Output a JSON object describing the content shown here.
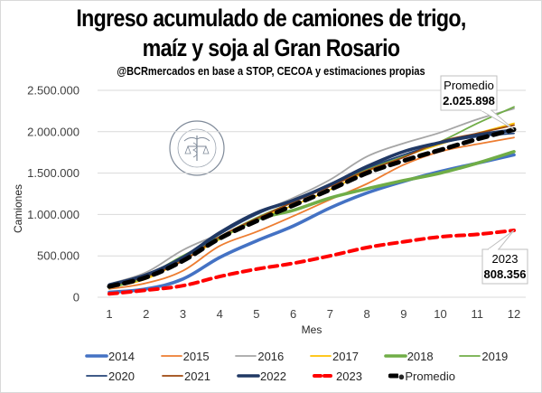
{
  "chart_data": {
    "type": "line",
    "title": "Ingreso acumulado de camiones de trigo, maíz y soja al Gran Rosario",
    "title_lines": [
      "Ingreso acumulado de camiones de trigo,",
      "maíz y soja al Gran Rosario"
    ],
    "subtitle": "@BCRmercados  en base a STOP, CECOA y estimaciones propias",
    "xlabel": "Mes",
    "ylabel": "Camiones",
    "x": [
      1,
      2,
      3,
      4,
      5,
      6,
      7,
      8,
      9,
      10,
      11,
      12
    ],
    "x_tick_labels": [
      "1",
      "2",
      "3",
      "4",
      "5",
      "6",
      "7",
      "8",
      "9",
      "10",
      "11",
      "12"
    ],
    "ylim": [
      0,
      2500000
    ],
    "y_ticks": [
      0,
      500000,
      1000000,
      1500000,
      2000000,
      2500000
    ],
    "y_tick_labels": [
      "0",
      "500.000",
      "1.000.000",
      "1.500.000",
      "2.000.000",
      "2.500.000"
    ],
    "grid": "horizontal",
    "legend_position": "bottom",
    "watermark": "BOLSA DE COMERCIO DE ROSARIO",
    "series": [
      {
        "name": "2014",
        "color": "#4472c4",
        "style": "solid-thick",
        "values": [
          60000,
          100000,
          220000,
          480000,
          680000,
          860000,
          1080000,
          1260000,
          1400000,
          1520000,
          1620000,
          1720000
        ]
      },
      {
        "name": "2015",
        "color": "#ed7d31",
        "style": "solid",
        "values": [
          100000,
          170000,
          320000,
          620000,
          790000,
          980000,
          1180000,
          1370000,
          1600000,
          1760000,
          1850000,
          1930000
        ]
      },
      {
        "name": "2016",
        "color": "#a5a5a5",
        "style": "solid",
        "values": [
          160000,
          300000,
          570000,
          770000,
          1010000,
          1200000,
          1420000,
          1700000,
          1860000,
          1990000,
          2150000,
          2280000
        ]
      },
      {
        "name": "2017",
        "color": "#ffc000",
        "style": "solid",
        "values": [
          120000,
          220000,
          450000,
          700000,
          940000,
          1110000,
          1300000,
          1520000,
          1700000,
          1850000,
          1980000,
          2100000
        ]
      },
      {
        "name": "2018",
        "color": "#70ad47",
        "style": "solid-thick",
        "values": [
          120000,
          250000,
          490000,
          720000,
          940000,
          1050000,
          1200000,
          1310000,
          1410000,
          1500000,
          1620000,
          1760000
        ]
      },
      {
        "name": "2019",
        "color": "#70ad47",
        "style": "solid",
        "values": [
          130000,
          260000,
          500000,
          730000,
          960000,
          1150000,
          1350000,
          1550000,
          1700000,
          1880000,
          2100000,
          2300000
        ]
      },
      {
        "name": "2020",
        "color": "#264478",
        "style": "solid",
        "values": [
          150000,
          280000,
          470000,
          760000,
          1000000,
          1180000,
          1360000,
          1560000,
          1720000,
          1860000,
          1940000,
          1980000
        ]
      },
      {
        "name": "2021",
        "color": "#9e480e",
        "style": "solid",
        "values": [
          140000,
          250000,
          440000,
          730000,
          950000,
          1150000,
          1340000,
          1530000,
          1690000,
          1880000,
          1980000,
          2080000
        ]
      },
      {
        "name": "2022",
        "color": "#203864",
        "style": "solid-thick",
        "values": [
          150000,
          270000,
          480000,
          780000,
          1020000,
          1170000,
          1360000,
          1580000,
          1760000,
          1870000,
          1960000,
          2020000
        ]
      },
      {
        "name": "2023",
        "color": "#ff0000",
        "style": "dashed",
        "values": [
          40000,
          85000,
          140000,
          250000,
          340000,
          410000,
          500000,
          600000,
          670000,
          730000,
          760000,
          808356
        ]
      },
      {
        "name": "Promedio",
        "color": "#000000",
        "style": "dashed-thick",
        "values": [
          130000,
          240000,
          440000,
          710000,
          920000,
          1110000,
          1300000,
          1500000,
          1650000,
          1780000,
          1910000,
          2025898
        ]
      }
    ],
    "annotations": [
      {
        "series": "Promedio",
        "x": 12,
        "label_name": "Promedio",
        "label_value": "2.025.898"
      },
      {
        "series": "2023",
        "x": 12,
        "label_name": "2023",
        "label_value": "808.356"
      }
    ]
  }
}
